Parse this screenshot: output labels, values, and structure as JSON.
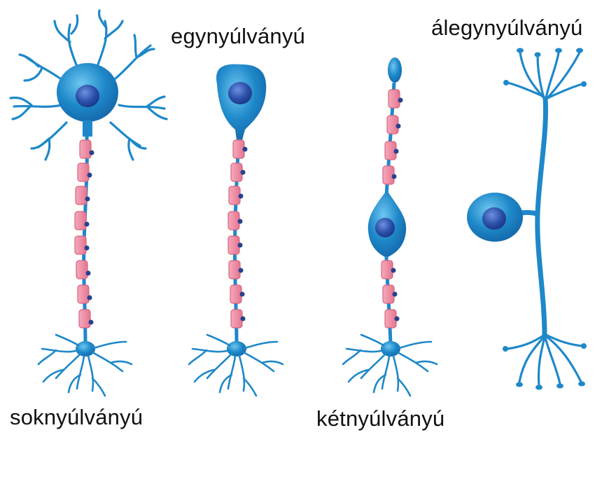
{
  "labels": {
    "multipolar": "soknyúlványú",
    "unipolar": "egynyúlványú",
    "bipolar": "kétnyúlványú",
    "pseudounipolar": "álegynyúlványú"
  },
  "colors": {
    "neuron_blue": "#1e88c9",
    "neuron_light": "#4fb3e6",
    "nucleus": "#2a4fa8",
    "myelin": "#ef8fa6",
    "myelin_edge": "#d9667f",
    "node_dot": "#27418f"
  }
}
